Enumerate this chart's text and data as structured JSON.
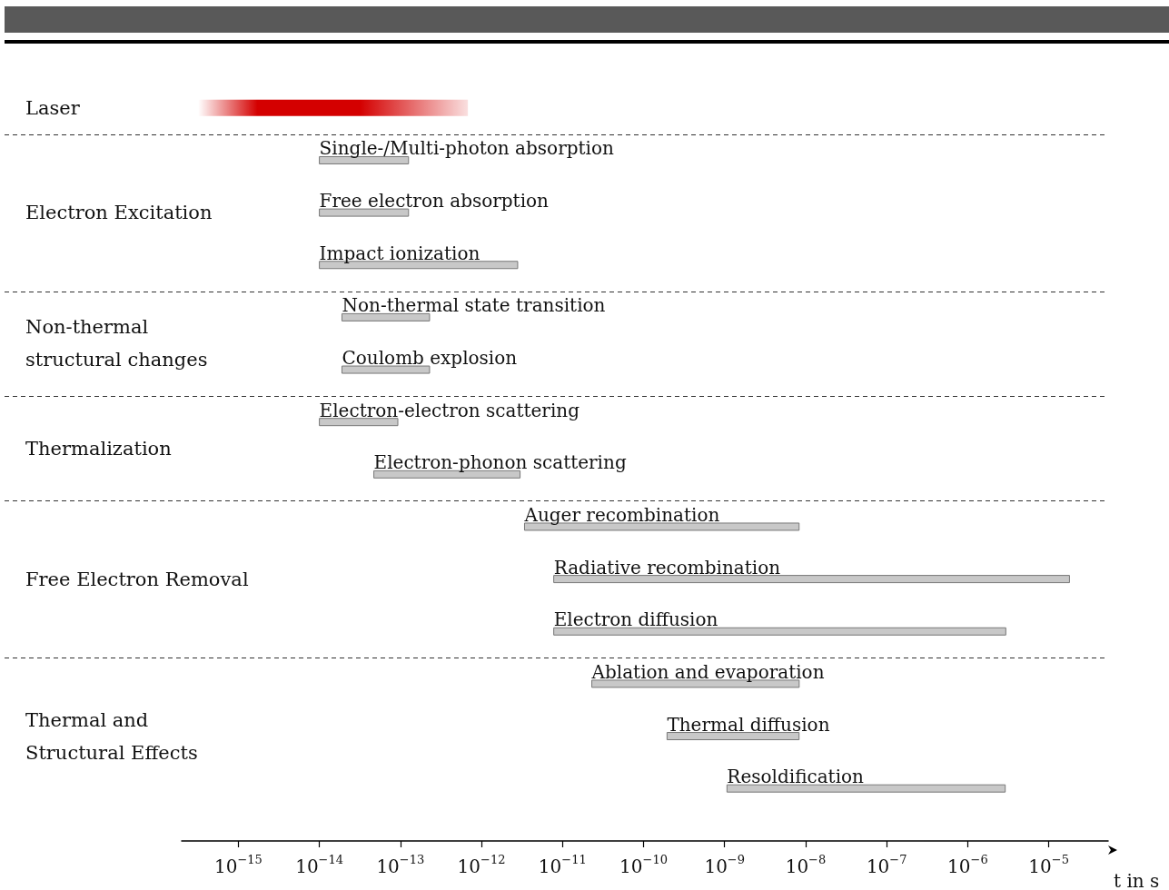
{
  "chart_data": {
    "type": "bar",
    "orientation": "horizontal",
    "log": "x",
    "xlabel": "t in s",
    "categories": [
      null,
      "Single-/Multi-photon absorption",
      "Free electron absorption",
      "Impact ionization",
      "Non-thermal state transition",
      "Coulomb explosion",
      "Electron-electron scattering",
      "Electron-phonon scattering",
      "Auger recombination",
      "Radiative recombination",
      "Electron diffusion",
      "Ablation and evaporation",
      "Thermal diffusion",
      "Resoldification"
    ],
    "base": [
      3.2e-16,
      1e-14,
      1e-14,
      1e-14,
      1.9e-14,
      1.9e-14,
      1e-14,
      4.7e-14,
      3.4e-12,
      7.8e-12,
      7.8e-12,
      2.3e-11,
      1.95e-10,
      1.07e-09
    ],
    "values": [
      6.8e-13,
      1.16e-13,
      1.16e-13,
      2.79e-12,
      2.1e-13,
      2.1e-13,
      8.3e-14,
      2.95e-12,
      8.3e-09,
      1.8e-05,
      2.95e-06,
      8.3e-09,
      8.1e-09,
      2.9e-06
    ],
    "colors": [
      "#d40000",
      "#c8c8c8",
      "#c8c8c8",
      "#c8c8c8",
      "#c8c8c8",
      "#c8c8c8",
      "#c8c8c8",
      "#c8c8c8",
      "#c8c8c8",
      "#c8c8c8",
      "#c8c8c8",
      "#c8c8c8",
      "#c8c8c8",
      "#c8c8c8"
    ],
    "xlim": [
      2e-16,
      5.4e-05
    ],
    "xticks": [
      {
        "value": 1e-15,
        "label": "10$^{−15}$"
      },
      {
        "value": 1e-14,
        "label": "10$^{−14}$"
      },
      {
        "value": 1e-13,
        "label": "10$^{−13}$"
      },
      {
        "value": 1e-12,
        "label": "10$^{−12}$"
      },
      {
        "value": 1e-11,
        "label": "10$^{−11}$"
      },
      {
        "value": 1e-10,
        "label": "10$^{−10}$"
      },
      {
        "value": 1e-09,
        "label": "10$^{−9}$"
      },
      {
        "value": 1e-08,
        "label": "10$^{−8}$"
      },
      {
        "value": 1e-07,
        "label": "10$^{−7}$"
      },
      {
        "value": 1e-06,
        "label": "10$^{−6}$"
      },
      {
        "value": 1e-05,
        "label": "10$^{−5}$"
      }
    ],
    "annotations": [
      "Laser",
      "Electron Excitation",
      "Non-thermal structural changes",
      "Thermalization",
      "Free Electron Removal",
      "Thermal and Structural Effects"
    ],
    "ref_lines": [
      {
        "axis": "y",
        "value": "Single-/Multi-photon absorption",
        "line_style": "dashed"
      },
      {
        "axis": "y",
        "value": "Non-thermal state transition",
        "line_style": "dashed"
      },
      {
        "axis": "y",
        "value": "Electron-electron scattering",
        "line_style": "dashed"
      },
      {
        "axis": "y",
        "value": "Auger recombination",
        "line_style": "dashed"
      },
      {
        "axis": "y",
        "value": "Ablation and evaporation",
        "line_style": "dashed"
      }
    ],
    "grid": false
  }
}
